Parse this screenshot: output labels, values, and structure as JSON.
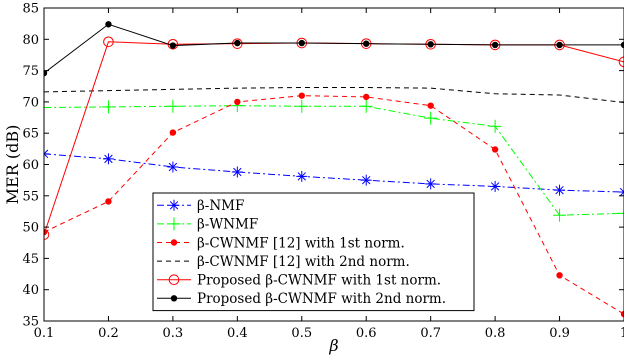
{
  "chart_data": {
    "type": "line",
    "title": "",
    "xlabel": "β",
    "ylabel": "MER (dB)",
    "xlim": [
      0.1,
      1.0
    ],
    "ylim": [
      35,
      85
    ],
    "xticks": [
      0.1,
      0.2,
      0.3,
      0.4,
      0.5,
      0.6,
      0.7,
      0.8,
      0.9,
      1.0
    ],
    "xtick_labels": [
      "0.1",
      "0.2",
      "0.3",
      "0.4",
      "0.5",
      "0.6",
      "0.7",
      "0.8",
      "0.9",
      "1"
    ],
    "yticks": [
      35,
      40,
      45,
      50,
      55,
      60,
      65,
      70,
      75,
      80,
      85
    ],
    "ytick_labels": [
      "35",
      "40",
      "45",
      "50",
      "55",
      "60",
      "65",
      "70",
      "75",
      "80",
      "85"
    ],
    "grid": false,
    "legend_position": "lower-left",
    "x": [
      0.1,
      0.2,
      0.3,
      0.4,
      0.5,
      0.6,
      0.7,
      0.8,
      0.9,
      1.0
    ],
    "series": [
      {
        "name": "β-NMF",
        "values": [
          61.7,
          60.9,
          59.6,
          58.8,
          58.1,
          57.5,
          56.9,
          56.5,
          55.9,
          55.6
        ],
        "color": "#0000ff",
        "dash": "dashdot",
        "marker": "asterisk"
      },
      {
        "name": "β-WNMF",
        "values": [
          69.1,
          69.2,
          69.3,
          69.4,
          69.3,
          69.3,
          67.4,
          66.1,
          51.9,
          52.2
        ],
        "color": "#00ff00",
        "dash": "dashdot",
        "marker": "plus"
      },
      {
        "name": "β-CWNMF [12] with 1st norm.",
        "values": [
          49.2,
          54.1,
          65.1,
          70.0,
          71.0,
          70.8,
          69.4,
          62.4,
          42.3,
          36.1
        ],
        "color": "#ff0000",
        "dash": "dashed",
        "marker": "dot"
      },
      {
        "name": "β-CWNMF [12] with 2nd norm.",
        "values": [
          71.6,
          71.8,
          72.0,
          72.2,
          72.3,
          72.3,
          72.2,
          71.3,
          71.1,
          69.9
        ],
        "color": "#000000",
        "dash": "dashed",
        "marker": "none"
      },
      {
        "name": "Proposed β-CWNMF with 1st norm.",
        "values": [
          48.8,
          79.6,
          79.2,
          79.3,
          79.4,
          79.3,
          79.2,
          79.1,
          79.1,
          76.4
        ],
        "color": "#ff0000",
        "dash": "solid",
        "marker": "circle"
      },
      {
        "name": "Proposed β-CWNMF with 2nd norm.",
        "values": [
          74.6,
          82.4,
          79.0,
          79.4,
          79.4,
          79.3,
          79.2,
          79.1,
          79.1,
          79.1
        ],
        "color": "#000000",
        "dash": "solid",
        "marker": "dot"
      }
    ]
  }
}
